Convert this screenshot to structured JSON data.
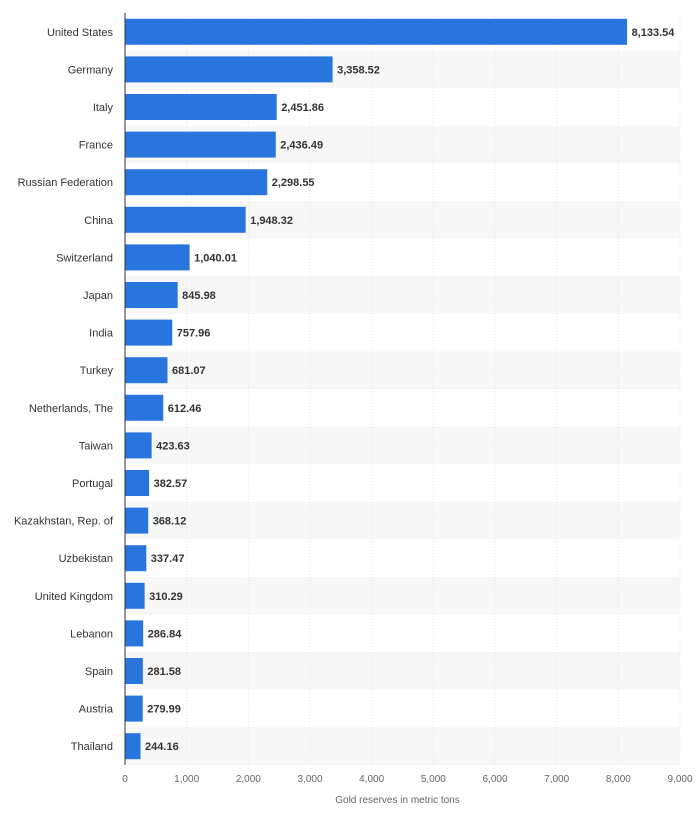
{
  "chart_data": {
    "type": "bar",
    "orientation": "horizontal",
    "categories": [
      "United States",
      "Germany",
      "Italy",
      "France",
      "Russian Federation",
      "China",
      "Switzerland",
      "Japan",
      "India",
      "Turkey",
      "Netherlands, The",
      "Taiwan",
      "Portugal",
      "Kazakhstan, Rep. of",
      "Uzbekistan",
      "United Kingdom",
      "Lebanon",
      "Spain",
      "Austria",
      "Thailand"
    ],
    "values": [
      8133.54,
      3358.52,
      2451.86,
      2436.49,
      2298.55,
      1948.32,
      1040.01,
      845.98,
      757.96,
      681.07,
      612.46,
      423.63,
      382.57,
      368.12,
      337.47,
      310.29,
      286.84,
      281.58,
      279.99,
      244.16
    ],
    "value_labels": [
      "8,133.54",
      "3,358.52",
      "2,451.86",
      "2,436.49",
      "2,298.55",
      "1,948.32",
      "1,040.01",
      "845.98",
      "757.96",
      "681.07",
      "612.46",
      "423.63",
      "382.57",
      "368.12",
      "337.47",
      "310.29",
      "286.84",
      "281.58",
      "279.99",
      "244.16"
    ],
    "title": "",
    "xlabel": "Gold reserves in metric tons",
    "ylabel": "",
    "xlim": [
      0,
      9000
    ],
    "x_ticks": [
      0,
      1000,
      2000,
      3000,
      4000,
      5000,
      6000,
      7000,
      8000,
      9000
    ],
    "x_tick_labels": [
      "0",
      "1,000",
      "2,000",
      "3,000",
      "4,000",
      "5,000",
      "6,000",
      "7,000",
      "8,000",
      "9,000"
    ],
    "grid": true,
    "bar_color": "#2876dd",
    "stripe_color": "#f7f7f7"
  }
}
